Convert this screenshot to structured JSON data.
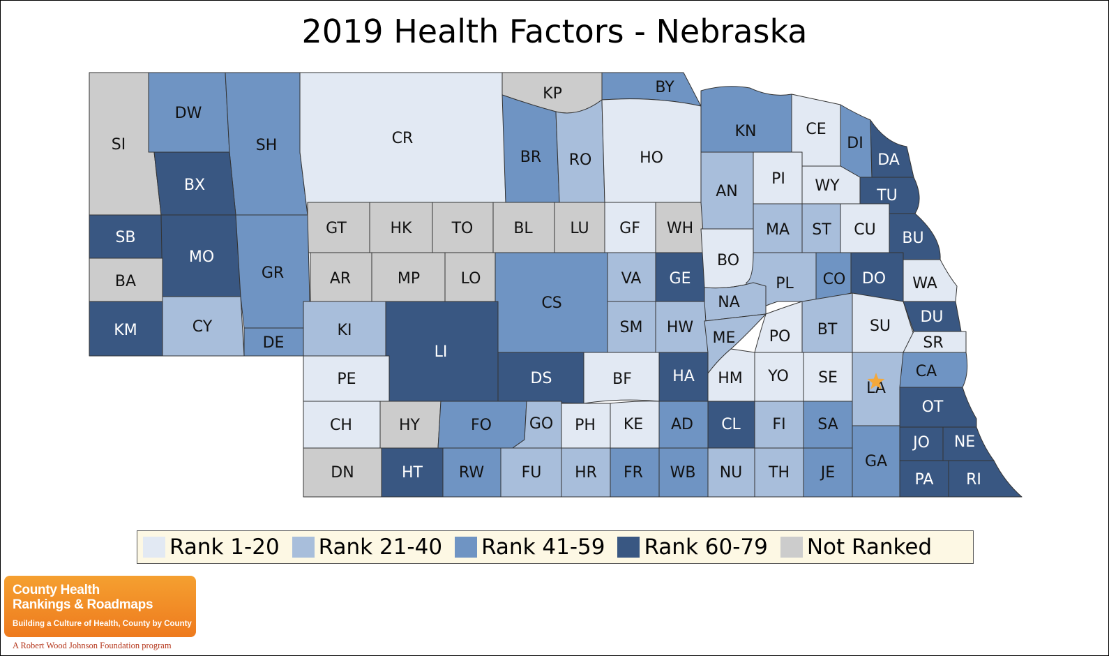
{
  "title": "2019 Health Factors - Nebraska",
  "colors": {
    "rank_1_20": "#e2e9f3",
    "rank_21_40": "#a8bedb",
    "rank_41_59": "#6f94c3",
    "rank_60_79": "#395782",
    "not_ranked": "#cccccc",
    "border": "#333333",
    "marker": "#f4a83a"
  },
  "legend": [
    {
      "label": "Rank 1-20",
      "key": "rank_1_20"
    },
    {
      "label": "Rank 21-40",
      "key": "rank_21_40"
    },
    {
      "label": "Rank 41-59",
      "key": "rank_41_59"
    },
    {
      "label": "Rank 60-79",
      "key": "rank_60_79"
    },
    {
      "label": "Not Ranked",
      "key": "not_ranked"
    }
  ],
  "counties": [
    {
      "code": "SI",
      "cat": "not_ranked"
    },
    {
      "code": "DW",
      "cat": "rank_41_59"
    },
    {
      "code": "SH",
      "cat": "rank_41_59"
    },
    {
      "code": "CR",
      "cat": "rank_1_20"
    },
    {
      "code": "KP",
      "cat": "not_ranked"
    },
    {
      "code": "BY",
      "cat": "rank_41_59"
    },
    {
      "code": "BR",
      "cat": "rank_41_59"
    },
    {
      "code": "RO",
      "cat": "rank_21_40"
    },
    {
      "code": "HO",
      "cat": "rank_1_20"
    },
    {
      "code": "KN",
      "cat": "rank_41_59"
    },
    {
      "code": "CE",
      "cat": "rank_1_20"
    },
    {
      "code": "DI",
      "cat": "rank_41_59"
    },
    {
      "code": "DA",
      "cat": "rank_60_79"
    },
    {
      "code": "BX",
      "cat": "rank_60_79"
    },
    {
      "code": "AN",
      "cat": "rank_21_40"
    },
    {
      "code": "PI",
      "cat": "rank_1_20"
    },
    {
      "code": "WY",
      "cat": "rank_1_20"
    },
    {
      "code": "TU",
      "cat": "rank_60_79"
    },
    {
      "code": "SB",
      "cat": "rank_60_79"
    },
    {
      "code": "MO",
      "cat": "rank_60_79"
    },
    {
      "code": "GT",
      "cat": "not_ranked"
    },
    {
      "code": "HK",
      "cat": "not_ranked"
    },
    {
      "code": "TO",
      "cat": "not_ranked"
    },
    {
      "code": "BL",
      "cat": "not_ranked"
    },
    {
      "code": "LU",
      "cat": "not_ranked"
    },
    {
      "code": "GF",
      "cat": "rank_1_20"
    },
    {
      "code": "WH",
      "cat": "not_ranked"
    },
    {
      "code": "MA",
      "cat": "rank_21_40"
    },
    {
      "code": "ST",
      "cat": "rank_21_40"
    },
    {
      "code": "CU",
      "cat": "rank_1_20"
    },
    {
      "code": "BU",
      "cat": "rank_60_79"
    },
    {
      "code": "BA",
      "cat": "not_ranked"
    },
    {
      "code": "GR",
      "cat": "rank_41_59"
    },
    {
      "code": "AR",
      "cat": "not_ranked"
    },
    {
      "code": "MP",
      "cat": "not_ranked"
    },
    {
      "code": "LO",
      "cat": "not_ranked"
    },
    {
      "code": "CS",
      "cat": "rank_41_59"
    },
    {
      "code": "VA",
      "cat": "rank_21_40"
    },
    {
      "code": "GE",
      "cat": "rank_60_79"
    },
    {
      "code": "BO",
      "cat": "rank_1_20"
    },
    {
      "code": "PL",
      "cat": "rank_21_40"
    },
    {
      "code": "CO",
      "cat": "rank_41_59"
    },
    {
      "code": "DO",
      "cat": "rank_60_79"
    },
    {
      "code": "WA",
      "cat": "rank_1_20"
    },
    {
      "code": "NA",
      "cat": "rank_21_40"
    },
    {
      "code": "KM",
      "cat": "rank_60_79"
    },
    {
      "code": "CY",
      "cat": "rank_21_40"
    },
    {
      "code": "DE",
      "cat": "rank_41_59"
    },
    {
      "code": "KI",
      "cat": "rank_21_40"
    },
    {
      "code": "LI",
      "cat": "rank_60_79"
    },
    {
      "code": "SM",
      "cat": "rank_21_40"
    },
    {
      "code": "HW",
      "cat": "rank_21_40"
    },
    {
      "code": "ME",
      "cat": "rank_21_40"
    },
    {
      "code": "PO",
      "cat": "rank_1_20"
    },
    {
      "code": "BT",
      "cat": "rank_21_40"
    },
    {
      "code": "SU",
      "cat": "rank_1_20"
    },
    {
      "code": "DU",
      "cat": "rank_60_79"
    },
    {
      "code": "SR",
      "cat": "rank_1_20"
    },
    {
      "code": "PE",
      "cat": "rank_1_20"
    },
    {
      "code": "DS",
      "cat": "rank_60_79"
    },
    {
      "code": "BF",
      "cat": "rank_1_20"
    },
    {
      "code": "HA",
      "cat": "rank_60_79"
    },
    {
      "code": "HM",
      "cat": "rank_1_20"
    },
    {
      "code": "YO",
      "cat": "rank_1_20"
    },
    {
      "code": "SE",
      "cat": "rank_1_20"
    },
    {
      "code": "LA",
      "cat": "rank_21_40"
    },
    {
      "code": "CA",
      "cat": "rank_41_59"
    },
    {
      "code": "CH",
      "cat": "rank_1_20"
    },
    {
      "code": "HY",
      "cat": "not_ranked"
    },
    {
      "code": "FO",
      "cat": "rank_41_59"
    },
    {
      "code": "GO",
      "cat": "rank_21_40"
    },
    {
      "code": "PH",
      "cat": "rank_1_20"
    },
    {
      "code": "KE",
      "cat": "rank_1_20"
    },
    {
      "code": "AD",
      "cat": "rank_41_59"
    },
    {
      "code": "CL",
      "cat": "rank_60_79"
    },
    {
      "code": "FI",
      "cat": "rank_21_40"
    },
    {
      "code": "SA",
      "cat": "rank_41_59"
    },
    {
      "code": "OT",
      "cat": "rank_60_79"
    },
    {
      "code": "JO",
      "cat": "rank_60_79"
    },
    {
      "code": "NE",
      "cat": "rank_60_79"
    },
    {
      "code": "GA",
      "cat": "rank_41_59"
    },
    {
      "code": "DN",
      "cat": "not_ranked"
    },
    {
      "code": "HT",
      "cat": "rank_60_79"
    },
    {
      "code": "RW",
      "cat": "rank_41_59"
    },
    {
      "code": "FU",
      "cat": "rank_21_40"
    },
    {
      "code": "HR",
      "cat": "rank_21_40"
    },
    {
      "code": "FR",
      "cat": "rank_41_59"
    },
    {
      "code": "WB",
      "cat": "rank_41_59"
    },
    {
      "code": "NU",
      "cat": "rank_21_40"
    },
    {
      "code": "TH",
      "cat": "rank_21_40"
    },
    {
      "code": "JE",
      "cat": "rank_41_59"
    },
    {
      "code": "PA",
      "cat": "rank_60_79"
    },
    {
      "code": "RI",
      "cat": "rank_60_79"
    }
  ],
  "state_capital_marker": "LA",
  "logo": {
    "line1": "County Health",
    "line2": "Rankings & Roadmaps",
    "tagline": "Building a Culture of Health, County by County",
    "program": "A Robert Wood Johnson Foundation program"
  }
}
